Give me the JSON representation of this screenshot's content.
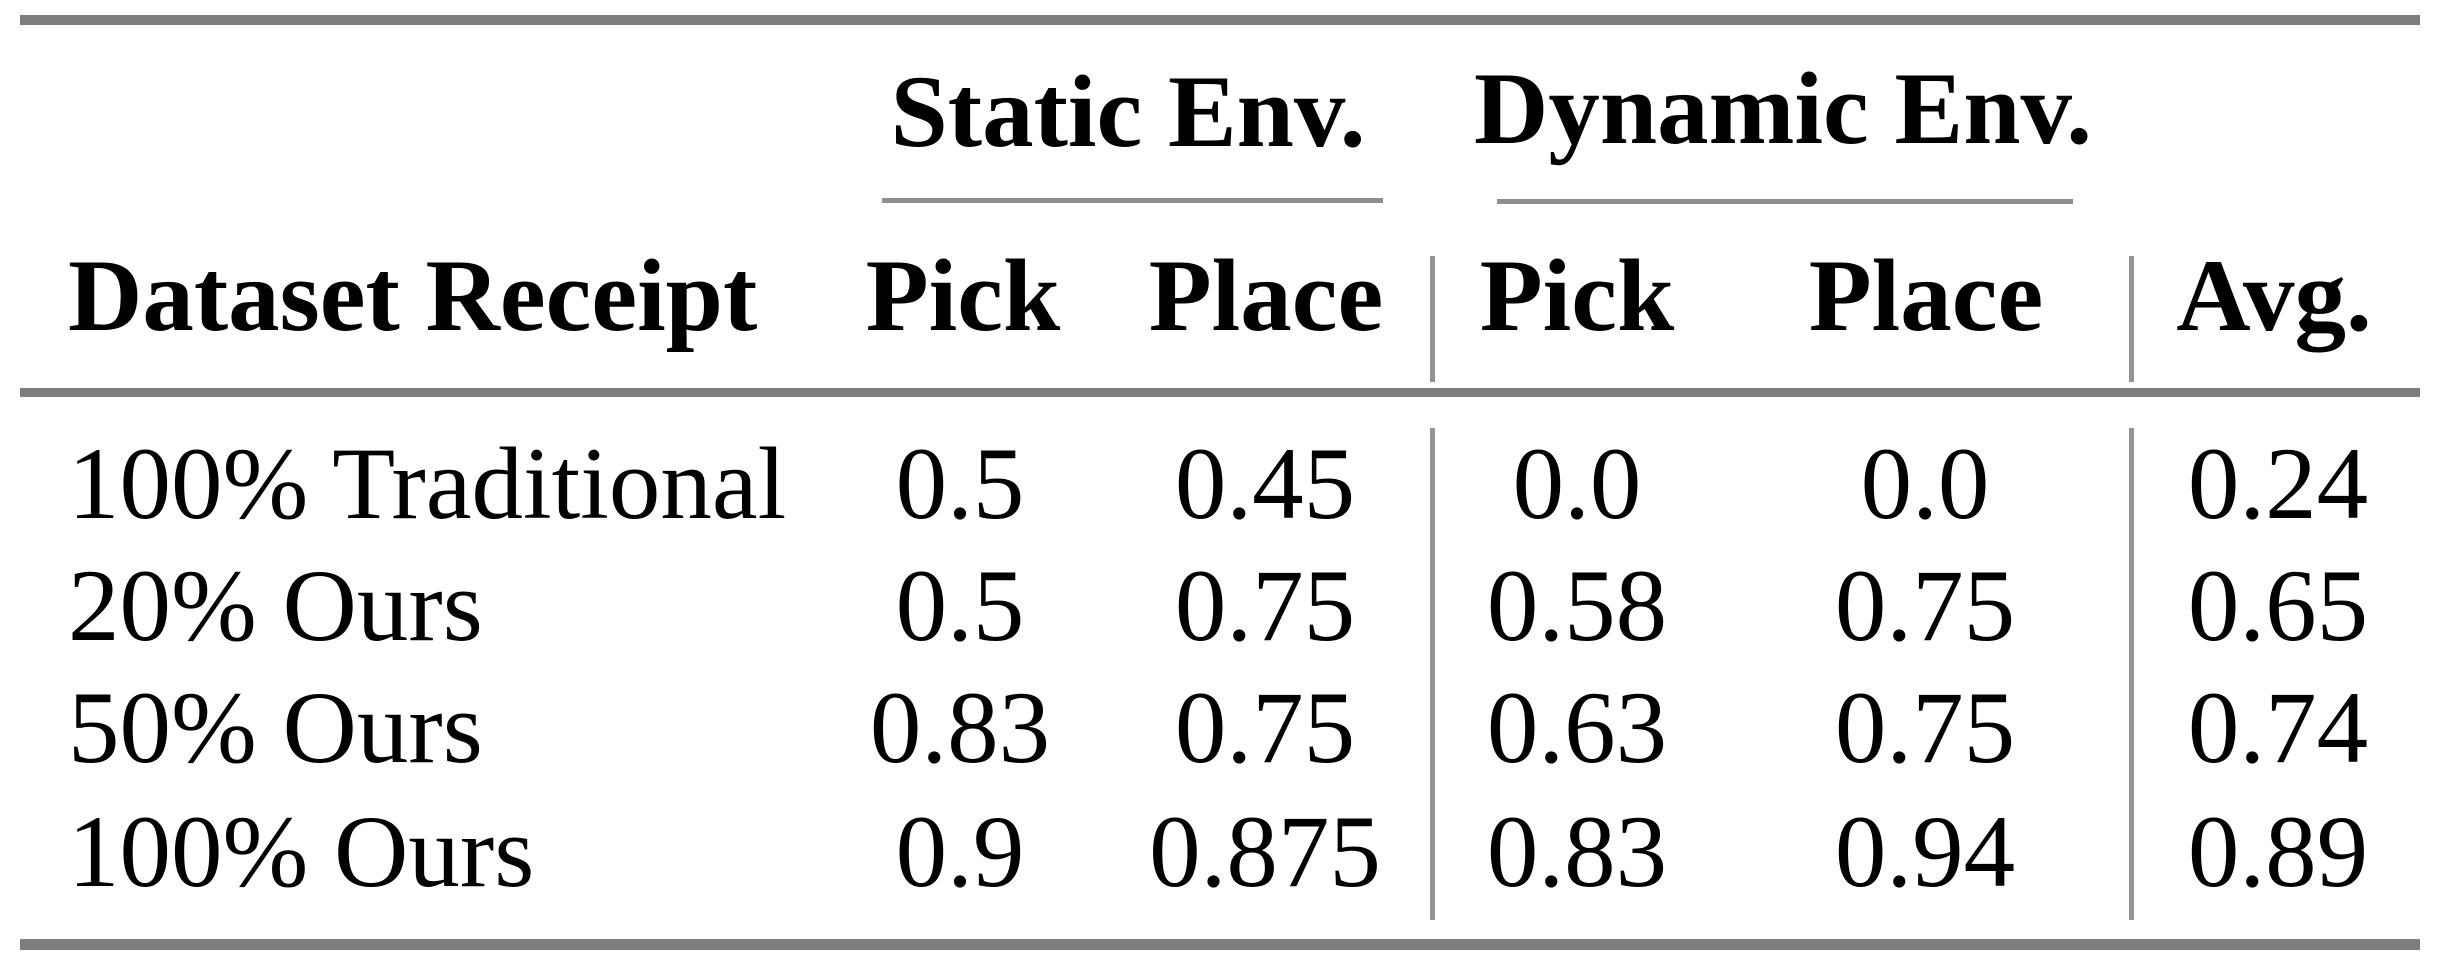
{
  "figure": {
    "type": "academic-results-table",
    "background_color": "#ffffff",
    "text_color": "#000000",
    "thick_rule_color": "#7d7d7d",
    "thin_rule_color": "#8e8e8e"
  },
  "header": {
    "row_label": "Dataset Receipt",
    "groups": [
      {
        "label": "Static Env.",
        "columns": [
          "Pick",
          "Place"
        ]
      },
      {
        "label": "Dynamic Env.",
        "columns": [
          "Pick",
          "Place"
        ]
      }
    ],
    "avg_label": "Avg."
  },
  "rows": [
    {
      "label": "100% Traditional",
      "values": [
        "0.5",
        "0.45",
        "0.0",
        "0.0",
        "0.24"
      ]
    },
    {
      "label": "20% Ours",
      "values": [
        "0.5",
        "0.75",
        "0.58",
        "0.75",
        "0.65"
      ]
    },
    {
      "label": "50% Ours",
      "values": [
        "0.83",
        "0.75",
        "0.63",
        "0.75",
        "0.74"
      ]
    },
    {
      "label": "100% Ours",
      "values": [
        "0.9",
        "0.875",
        "0.83",
        "0.94",
        "0.89"
      ]
    }
  ],
  "chart_data": {
    "type": "table",
    "columns": [
      "Dataset Receipt",
      "Static Env. Pick",
      "Static Env. Place",
      "Dynamic Env. Pick",
      "Dynamic Env. Place",
      "Avg."
    ],
    "rows": [
      [
        "100% Traditional",
        0.5,
        0.45,
        0.0,
        0.0,
        0.24
      ],
      [
        "20% Ours",
        0.5,
        0.75,
        0.58,
        0.75,
        0.65
      ],
      [
        "50% Ours",
        0.83,
        0.75,
        0.63,
        0.75,
        0.74
      ],
      [
        "100% Ours",
        0.9,
        0.875,
        0.83,
        0.94,
        0.89
      ]
    ]
  }
}
